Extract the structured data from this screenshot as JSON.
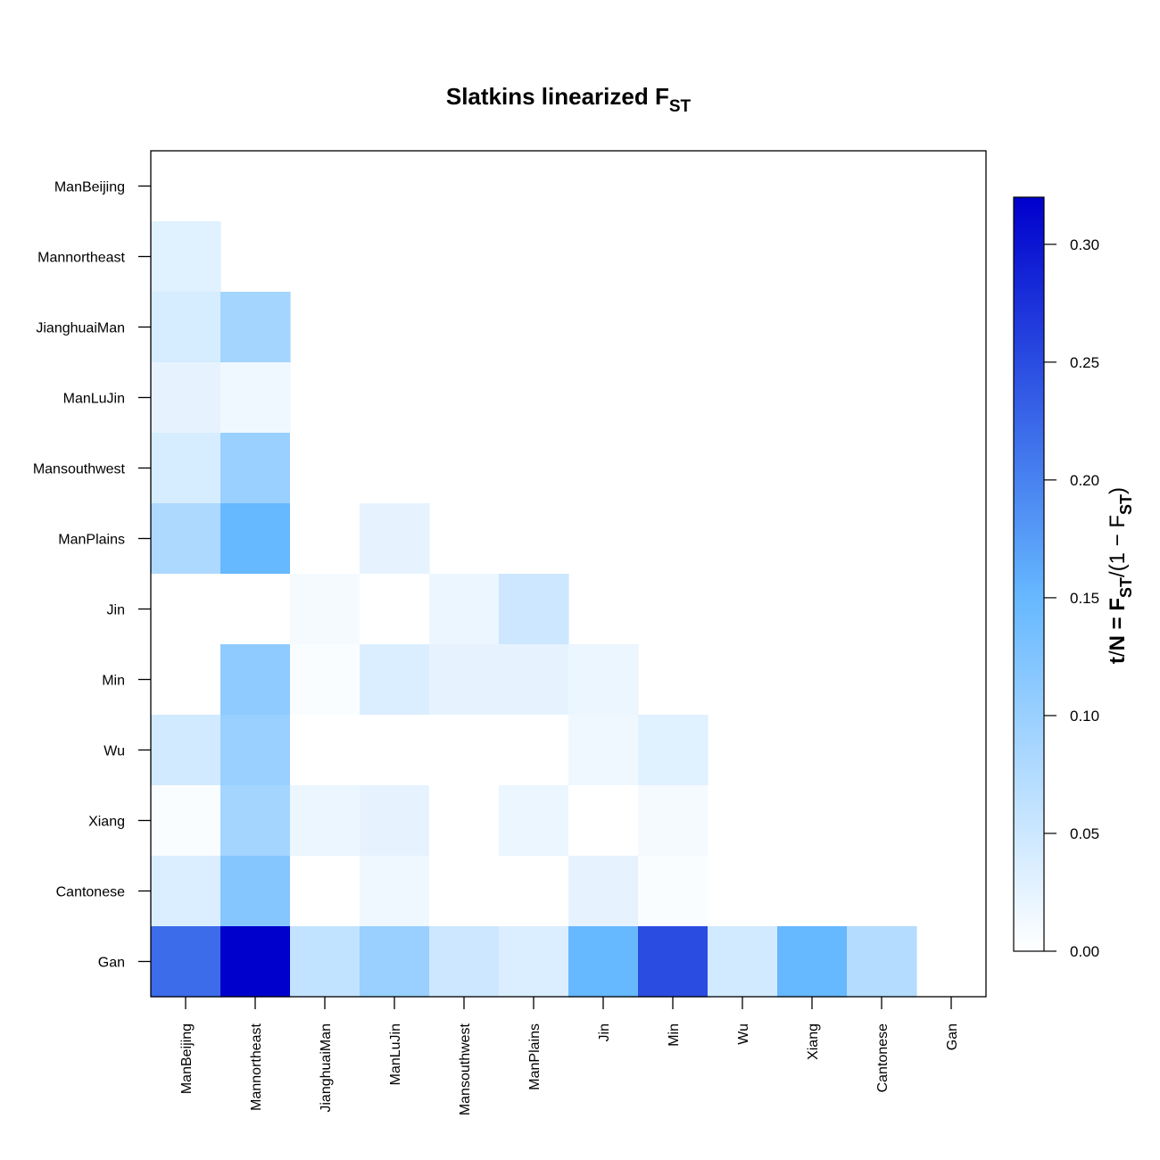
{
  "chart_data": {
    "type": "heatmap",
    "title": {
      "main": "Slatkins linearized F",
      "subscript": "ST"
    },
    "legend_title": {
      "lead": "t",
      "slash": "/",
      "n_eq": "N = F",
      "sub1": "ST",
      "mid": "/(1 − F",
      "sub2": "ST",
      "end": ")"
    },
    "rows": [
      "ManBeijing",
      "Mannortheast",
      "JianghuaiMan",
      "ManLuJin",
      "Mansouthwest",
      "ManPlains",
      "Jin",
      "Min",
      "Wu",
      "Xiang",
      "Cantonese",
      "Gan"
    ],
    "columns": [
      "ManBeijing",
      "Mannortheast",
      "JianghuaiMan",
      "ManLuJin",
      "Mansouthwest",
      "ManPlains",
      "Jin",
      "Min",
      "Wu",
      "Xiang",
      "Cantonese",
      "Gan"
    ],
    "values": [
      [
        null,
        null,
        null,
        null,
        null,
        null,
        null,
        null,
        null,
        null,
        null,
        null
      ],
      [
        0.03,
        null,
        null,
        null,
        null,
        null,
        null,
        null,
        null,
        null,
        null,
        null
      ],
      [
        0.04,
        0.09,
        null,
        null,
        null,
        null,
        null,
        null,
        null,
        null,
        null,
        null
      ],
      [
        0.025,
        0.015,
        null,
        null,
        null,
        null,
        null,
        null,
        null,
        null,
        null,
        null
      ],
      [
        0.04,
        0.1,
        0.0,
        null,
        null,
        null,
        null,
        null,
        null,
        null,
        null,
        null
      ],
      [
        0.08,
        0.15,
        0.0,
        0.025,
        null,
        null,
        null,
        null,
        null,
        null,
        null,
        null
      ],
      [
        0.0,
        0.0,
        0.01,
        0.0,
        0.02,
        0.05,
        null,
        null,
        null,
        null,
        null,
        null
      ],
      [
        0.0,
        0.11,
        0.005,
        0.035,
        0.025,
        0.025,
        0.02,
        null,
        null,
        null,
        null,
        null
      ],
      [
        0.045,
        0.1,
        0.0,
        0.0,
        0.0,
        0.0,
        0.015,
        0.03,
        null,
        null,
        null,
        null
      ],
      [
        0.005,
        0.09,
        0.02,
        0.025,
        0.0,
        0.02,
        0.0,
        0.01,
        null,
        null,
        null,
        null
      ],
      [
        0.035,
        0.12,
        0.0,
        0.015,
        0.0,
        0.0,
        0.025,
        0.005,
        null,
        null,
        null,
        null
      ],
      [
        0.22,
        0.32,
        0.06,
        0.1,
        0.05,
        0.035,
        0.15,
        0.25,
        0.045,
        0.15,
        0.075,
        null
      ]
    ],
    "scale": {
      "min": 0.0,
      "max": 0.32,
      "ticks": [
        0.0,
        0.05,
        0.1,
        0.15,
        0.2,
        0.25,
        0.3
      ],
      "tick_labels": [
        "0.00",
        "0.05",
        "0.10",
        "0.15",
        "0.20",
        "0.25",
        "0.30"
      ],
      "low_color": "#ffffff",
      "mid_color": "#66b8ff",
      "high_color": "#0000cc"
    }
  }
}
